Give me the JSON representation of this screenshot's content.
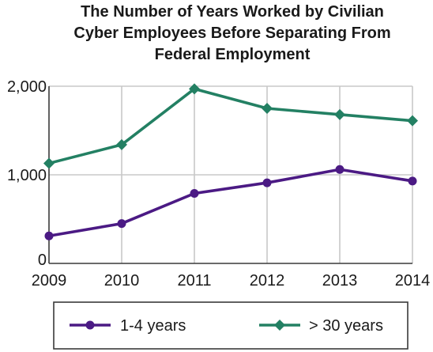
{
  "chart_data": {
    "type": "line",
    "title_lines": [
      "The Number of Years Worked by Civilian",
      "Cyber Employees Before Separating From",
      "Federal Employment"
    ],
    "xlabel": "",
    "ylabel": "",
    "categories": [
      "2009",
      "2010",
      "2011",
      "2012",
      "2013",
      "2014"
    ],
    "y_ticks": [
      {
        "value": 0,
        "label": "0"
      },
      {
        "value": 1000,
        "label": "1,000"
      },
      {
        "value": 2000,
        "label": "2,000"
      }
    ],
    "ylim": [
      0,
      2000
    ],
    "grid": true,
    "legend_position": "bottom",
    "series": [
      {
        "name": "1-4 years",
        "color": "#4b1a84",
        "marker": "circle",
        "values": [
          310,
          450,
          790,
          910,
          1060,
          930
        ]
      },
      {
        "name": "> 30 years",
        "color": "#238063",
        "marker": "diamond",
        "values": [
          1130,
          1340,
          1970,
          1750,
          1680,
          1610
        ]
      }
    ]
  }
}
